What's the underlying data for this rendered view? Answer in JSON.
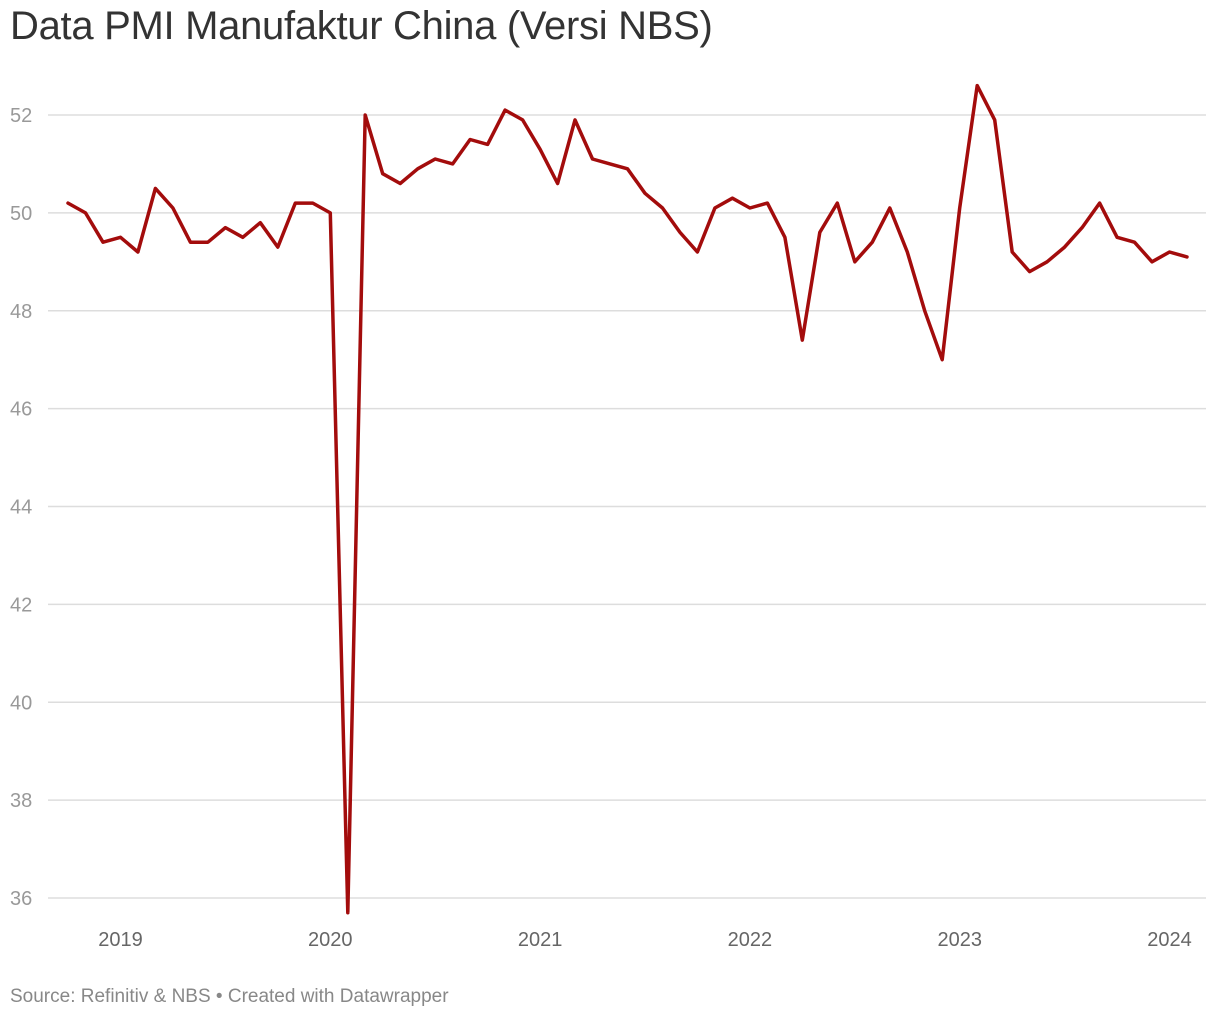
{
  "title": "Data PMI Manufaktur China (Versi NBS)",
  "footer": "Source: Refinitiv & NBS • Created with Datawrapper",
  "colors": {
    "line": "#a30c0c",
    "grid": "#dddddd",
    "tick": "#999999",
    "xtick": "#666666",
    "title": "#333333"
  },
  "chart_data": {
    "type": "line",
    "title": "Data PMI Manufaktur China (Versi NBS)",
    "xlabel": "",
    "ylabel": "",
    "grid": true,
    "ylim": [
      36,
      52
    ],
    "y_ticks": [
      36,
      38,
      40,
      42,
      44,
      46,
      48,
      50,
      52
    ],
    "x_ticks": [
      "2019",
      "2020",
      "2021",
      "2022",
      "2023",
      "2024"
    ],
    "xlim": [
      "2018-10",
      "2024-02"
    ],
    "series": [
      {
        "x": [
          "2018-10",
          "2018-11",
          "2018-12",
          "2019-01",
          "2019-02",
          "2019-03",
          "2019-04",
          "2019-05",
          "2019-06",
          "2019-07",
          "2019-08",
          "2019-09",
          "2019-10",
          "2019-11",
          "2019-12",
          "2020-01",
          "2020-02",
          "2020-03",
          "2020-04",
          "2020-05",
          "2020-06",
          "2020-07",
          "2020-08",
          "2020-09",
          "2020-10",
          "2020-11",
          "2020-12",
          "2021-01",
          "2021-02",
          "2021-03",
          "2021-04",
          "2021-05",
          "2021-06",
          "2021-07",
          "2021-08",
          "2021-09",
          "2021-10",
          "2021-11",
          "2021-12",
          "2022-01",
          "2022-02",
          "2022-03",
          "2022-04",
          "2022-05",
          "2022-06",
          "2022-07",
          "2022-08",
          "2022-09",
          "2022-10",
          "2022-11",
          "2022-12",
          "2023-01",
          "2023-02",
          "2023-03",
          "2023-04",
          "2023-05",
          "2023-06",
          "2023-07",
          "2023-08",
          "2023-09",
          "2023-10",
          "2023-11",
          "2023-12",
          "2024-01",
          "2024-02"
        ],
        "values": [
          50.2,
          50.0,
          49.4,
          49.5,
          49.2,
          50.5,
          50.1,
          49.4,
          49.4,
          49.7,
          49.5,
          49.8,
          49.3,
          50.2,
          50.2,
          50.0,
          35.7,
          52.0,
          50.8,
          50.6,
          50.9,
          51.1,
          51.0,
          51.5,
          51.4,
          52.1,
          51.9,
          51.3,
          50.6,
          51.9,
          51.1,
          51.0,
          50.9,
          50.4,
          50.1,
          49.6,
          49.2,
          50.1,
          50.3,
          50.1,
          50.2,
          49.5,
          47.4,
          49.6,
          50.2,
          49.0,
          49.4,
          50.1,
          49.2,
          48.0,
          47.0,
          50.1,
          52.6,
          51.9,
          49.2,
          48.8,
          49.0,
          49.3,
          49.7,
          50.2,
          49.5,
          49.4,
          49.0,
          49.2,
          49.1
        ]
      }
    ]
  }
}
